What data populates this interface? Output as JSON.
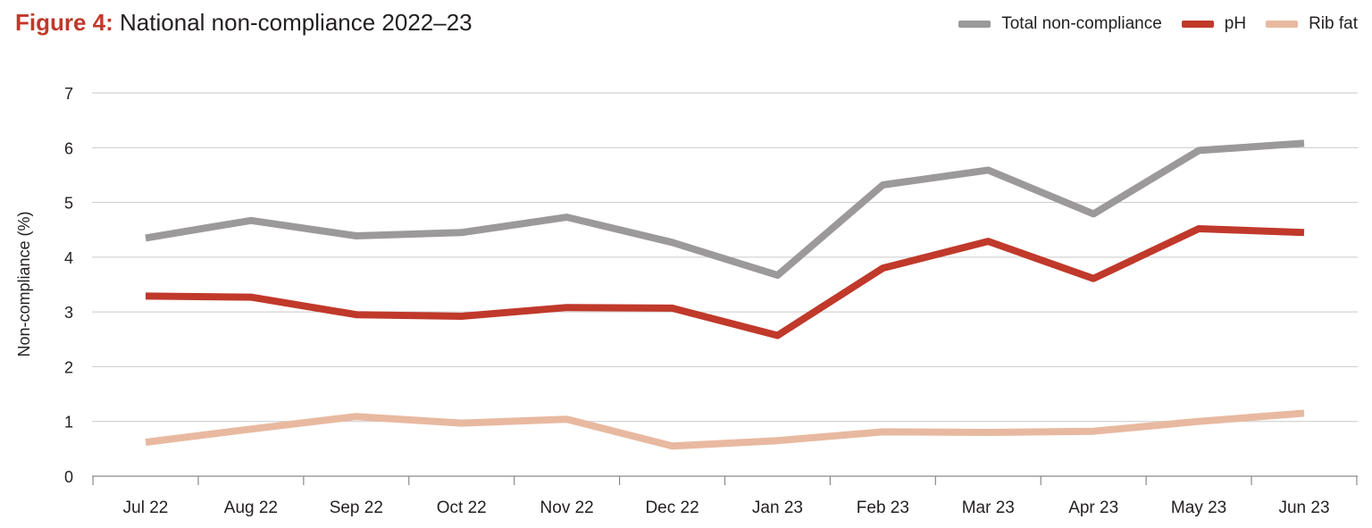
{
  "figure": {
    "label": "Figure 4:",
    "title": "National non-compliance 2022–23"
  },
  "chart_data": {
    "type": "line",
    "title": "National non-compliance 2022–23",
    "xlabel": "",
    "ylabel": "Non-compliance (%)",
    "ylim": [
      0,
      7
    ],
    "yticks": [
      "0",
      "1",
      "2",
      "3",
      "4",
      "5",
      "6",
      "7"
    ],
    "categories": [
      "Jul 22",
      "Aug 22",
      "Sep 22",
      "Oct 22",
      "Nov 22",
      "Dec 22",
      "Jan 23",
      "Feb 23",
      "Mar 23",
      "Apr 23",
      "May 23",
      "Jun 23"
    ],
    "grid": true,
    "legend_position": "top-right",
    "series": [
      {
        "name": "Total non-compliance",
        "color": "#9b999a",
        "values": [
          4.35,
          4.67,
          4.39,
          4.45,
          4.73,
          4.27,
          3.67,
          5.32,
          5.59,
          4.79,
          5.95,
          6.08
        ]
      },
      {
        "name": "pH",
        "color": "#c0392b",
        "values": [
          3.29,
          3.27,
          2.95,
          2.92,
          3.08,
          3.07,
          2.57,
          3.8,
          4.29,
          3.61,
          4.52,
          4.45
        ]
      },
      {
        "name": "Rib fat",
        "color": "#e8b9a0",
        "values": [
          0.62,
          0.86,
          1.09,
          0.97,
          1.04,
          0.55,
          0.65,
          0.81,
          0.8,
          0.82,
          1.0,
          1.15
        ]
      }
    ]
  }
}
